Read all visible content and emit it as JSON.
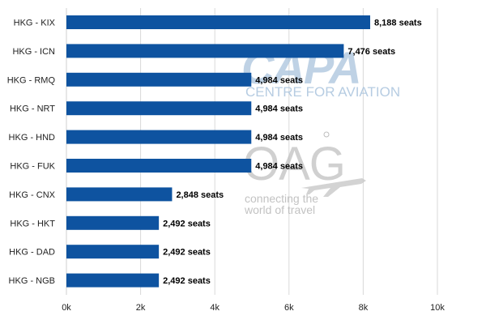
{
  "chart_data": {
    "type": "bar",
    "orientation": "horizontal",
    "categories": [
      "HKG - KIX",
      "HKG - ICN",
      "HKG - RMQ",
      "HKG - NRT",
      "HKG - HND",
      "HKG - FUK",
      "HKG - CNX",
      "HKG - HKT",
      "HKG - DAD",
      "HKG - NGB"
    ],
    "values": [
      8188,
      7476,
      4984,
      4984,
      4984,
      4984,
      2848,
      2492,
      2492,
      2492
    ],
    "data_labels": [
      "8,188 seats",
      "7,476 seats",
      "4,984 seats",
      "4,984 seats",
      "4,984 seats",
      "4,984 seats",
      "2,848 seats",
      "2,492 seats",
      "2,492 seats",
      "2,492 seats"
    ],
    "xlim": [
      0,
      10000
    ],
    "x_ticks": [
      0,
      2000,
      4000,
      6000,
      8000,
      10000
    ],
    "x_tick_labels": [
      "0k",
      "2k",
      "4k",
      "6k",
      "8k",
      "10k"
    ],
    "grid": true,
    "title": "",
    "xlabel": "",
    "ylabel": "",
    "bar_color": "#0e53a0",
    "grid_color": "#d9d9d9"
  },
  "watermarks": {
    "capa": {
      "logo_text": "CAPA",
      "subtitle": "CENTRE FOR AVIATION",
      "color": "#aac4dd"
    },
    "oag": {
      "logo_text": "OAG",
      "tagline_line1": "connecting the",
      "tagline_line2": "world of travel",
      "color": "#bdbdbd",
      "icon": "airplane-icon"
    }
  }
}
